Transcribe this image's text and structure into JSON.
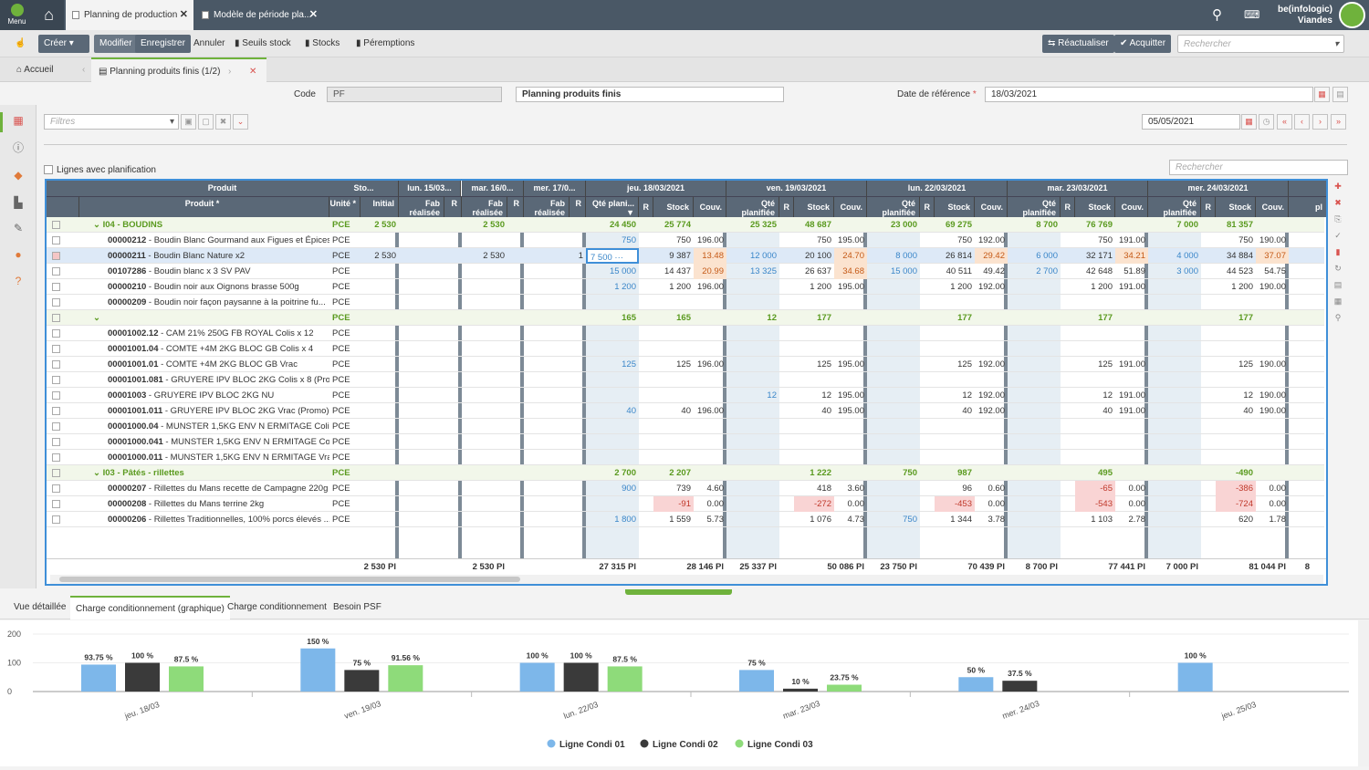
{
  "header": {
    "menu": "Menu",
    "tabs": [
      {
        "label": "Planning de production"
      },
      {
        "label": "Modèle de période pla..."
      }
    ],
    "brand_line1": "be(infologic)",
    "brand_line2": "Viandes"
  },
  "toolbar": {
    "create": "Créer",
    "modify": "Modifier",
    "save": "Enregistrer",
    "cancel": "Annuler",
    "seuils": "Seuils stock",
    "stocks": "Stocks",
    "peremptions": "Péremptions",
    "reactualiser": "Réactualiser",
    "acquitter": "Acquitter",
    "search_placeholder": "Rechercher"
  },
  "breadcrumb": {
    "home": "Accueil",
    "current": "Planning produits finis  (1/2)"
  },
  "form": {
    "code_label": "Code",
    "code_value": "PF",
    "name_value": "Planning produits finis",
    "date_ref_label": "Date de référence",
    "date_ref_value": "18/03/2021",
    "filters_placeholder": "Filtres",
    "date_nav": "05/05/2021",
    "checkbox_label": "Lignes avec planification",
    "grid_search": "Rechercher"
  },
  "grid": {
    "day_headers": [
      "Produit",
      "Sto...",
      "lun. 15/03...",
      "mar. 16/0...",
      "mer. 17/0...",
      "jeu. 18/03/2021",
      "ven. 19/03/2021",
      "lun. 22/03/2021",
      "mar. 23/03/2021",
      "mer. 24/03/2021"
    ],
    "sub_headers": {
      "produit": "Produit",
      "unite": "Unité",
      "initial": "Initial",
      "fab": "Fab réalisée",
      "r": "R",
      "qte": "Qté planifiée",
      "qte_short": "Qté plani...",
      "stock": "Stock",
      "couv": "Couv.",
      "pl": "pl"
    },
    "rows": [
      {
        "type": "grp",
        "prod": "I04 - BOUDINS",
        "unit": "PCE",
        "init": "2 530",
        "m16": "2 530",
        "d1q": "24 450",
        "d1s": "25 774",
        "d2q": "25 325",
        "d2s": "48 687",
        "d3q": "23 000",
        "d3s": "69 275",
        "d4q": "8 700",
        "d4s": "76 769",
        "d5q": "7 000",
        "d5s": "81 357"
      },
      {
        "code": "00000212",
        "prod": " - Boudin Blanc Gourmand aux Figues et Épices",
        "unit": "PCE",
        "d1q": "750",
        "d1s": "750",
        "d1c": "196.00",
        "d2s": "750",
        "d2c": "195.00",
        "d3s": "750",
        "d3c": "192.00",
        "d4s": "750",
        "d4c": "191.00",
        "d5s": "750",
        "d5c": "190.00"
      },
      {
        "type": "sel",
        "code": "00000211",
        "prod": " - Boudin Blanc Nature x2",
        "unit": "PCE",
        "init": "2 530",
        "m16": "2 530",
        "m17r": "1",
        "d1q": "7 500",
        "d1s": "9 387",
        "d1c": "13.48",
        "d1co": true,
        "d2q": "12 000",
        "d2s": "20 100",
        "d2c": "24.70",
        "d2co": true,
        "d3q": "8 000",
        "d3s": "26 814",
        "d3c": "29.42",
        "d3co": true,
        "d4q": "6 000",
        "d4s": "32 171",
        "d4c": "34.21",
        "d4co": true,
        "d5q": "4 000",
        "d5s": "34 884",
        "d5c": "37.07",
        "d5co": true
      },
      {
        "code": "00107286",
        "prod": " - Boudin blanc x 3 SV PAV",
        "unit": "PCE",
        "d1q": "15 000",
        "d1s": "14 437",
        "d1c": "20.99",
        "d1co": true,
        "d2q": "13 325",
        "d2s": "26 637",
        "d2c": "34.68",
        "d2co": true,
        "d3q": "15 000",
        "d3s": "40 511",
        "d3c": "49.42",
        "d4q": "2 700",
        "d4s": "42 648",
        "d4c": "51.89",
        "d5q": "3 000",
        "d5s": "44 523",
        "d5c": "54.75"
      },
      {
        "code": "00000210",
        "prod": " - Boudin noir aux Oignons brasse 500g",
        "unit": "PCE",
        "d1q": "1 200",
        "d1s": "1 200",
        "d1c": "196.00",
        "d2s": "1 200",
        "d2c": "195.00",
        "d3s": "1 200",
        "d3c": "192.00",
        "d4s": "1 200",
        "d4c": "191.00",
        "d5s": "1 200",
        "d5c": "190.00"
      },
      {
        "code": "00000209",
        "prod": " - Boudin noir façon paysanne à la poitrine fu...",
        "unit": "PCE"
      },
      {
        "type": "grp",
        "prod": "",
        "unit": "PCE",
        "d1q": "165",
        "d1s": "165",
        "d2q": "12",
        "d2s": "177",
        "d3s": "177",
        "d4s": "177",
        "d5s": "177"
      },
      {
        "code": "00001002.12",
        "prod": " - CAM 21% 250G FB ROYAL Colis x 12",
        "unit": "PCE"
      },
      {
        "code": "00001001.04",
        "prod": " - COMTE +4M 2KG BLOC GB Colis x 4",
        "unit": "PCE"
      },
      {
        "code": "00001001.01",
        "prod": " - COMTE +4M 2KG BLOC GB Vrac",
        "unit": "PCE",
        "d1q": "125",
        "d1s": "125",
        "d1c": "196.00",
        "d2s": "125",
        "d2c": "195.00",
        "d3s": "125",
        "d3c": "192.00",
        "d4s": "125",
        "d4c": "191.00",
        "d5s": "125",
        "d5c": "190.00"
      },
      {
        "code": "00001001.081",
        "prod": " - GRUYERE IPV BLOC 2KG Colis x 8 (Pro...",
        "unit": "PCE"
      },
      {
        "code": "00001003",
        "prod": " - GRUYERE IPV BLOC 2KG NU",
        "unit": "PCE",
        "d2q": "12",
        "d2s": "12",
        "d2c": "195.00",
        "d3s": "12",
        "d3c": "192.00",
        "d4s": "12",
        "d4c": "191.00",
        "d5s": "12",
        "d5c": "190.00"
      },
      {
        "code": "00001001.011",
        "prod": " - GRUYERE IPV BLOC 2KG Vrac (Promo)",
        "unit": "PCE",
        "d1q": "40",
        "d1s": "40",
        "d1c": "196.00",
        "d2s": "40",
        "d2c": "195.00",
        "d3s": "40",
        "d3c": "192.00",
        "d4s": "40",
        "d4c": "191.00",
        "d5s": "40",
        "d5c": "190.00"
      },
      {
        "code": "00001000.04",
        "prod": " - MUNSTER 1,5KG ENV N ERMITAGE Coli...",
        "unit": "PCE"
      },
      {
        "code": "00001000.041",
        "prod": " - MUNSTER 1,5KG ENV N ERMITAGE Col...",
        "unit": "PCE"
      },
      {
        "code": "00001000.011",
        "prod": " - MUNSTER 1,5KG ENV N ERMITAGE Vra...",
        "unit": "PCE"
      },
      {
        "type": "grp",
        "prod": "I03 - Pâtés - rillettes",
        "unit": "PCE",
        "d1q": "2 700",
        "d1s": "2 207",
        "d2s": "1 222",
        "d3q": "750",
        "d3s": "987",
        "d4s": "495",
        "d5s": "-490"
      },
      {
        "code": "00000207",
        "prod": " - Rillettes du Mans recette de Campagne 220g",
        "unit": "PCE",
        "d1q": "900",
        "d1s": "739",
        "d1c": "4.60",
        "d2s": "418",
        "d2c": "3.60",
        "d3s": "96",
        "d3c": "0.60",
        "d4s": "-65",
        "d4c": "0.00",
        "d4sr": true,
        "d5s": "-386",
        "d5c": "0.00",
        "d5sr": true
      },
      {
        "code": "00000208",
        "prod": " - Rillettes du Mans terrine 2kg",
        "unit": "PCE",
        "d1s": "-91",
        "d1c": "0.00",
        "d1sr": true,
        "d2s": "-272",
        "d2c": "0.00",
        "d2sr": true,
        "d3s": "-453",
        "d3c": "0.00",
        "d3sr": true,
        "d4s": "-543",
        "d4c": "0.00",
        "d4sr": true,
        "d5s": "-724",
        "d5c": "0.00",
        "d5sr": true
      },
      {
        "code": "00000206",
        "prod": " - Rillettes Traditionnelles, 100% porcs élevés ...",
        "unit": "PCE",
        "d1q": "1 800",
        "d1s": "1 559",
        "d1c": "5.73",
        "d2s": "1 076",
        "d2c": "4.73",
        "d3q": "750",
        "d3s": "1 344",
        "d3c": "3.78",
        "d4s": "1 103",
        "d4c": "2.78",
        "d5s": "620",
        "d5c": "1.78"
      }
    ],
    "totals": {
      "init": "2 530 Pl",
      "m16": "2 530 Pl",
      "d1q": "27 315 Pl",
      "d1s": "28 146 Pl",
      "d2q": "25 337 Pl",
      "d2s": "50 086 Pl",
      "d3q": "23 750 Pl",
      "d3s": "70 439 Pl",
      "d4q": "8 700 Pl",
      "d4s": "77 441 Pl",
      "d5q": "7 000 Pl",
      "d5s": "81 044 Pl",
      "pl": "8"
    }
  },
  "bottom_tabs": [
    "Vue détaillée",
    "Charge conditionnement (graphique)",
    "Charge conditionnement",
    "Besoin PSF"
  ],
  "colors": {
    "accent": "#6fb23c",
    "header_bg": "#4a5866",
    "series1": "#7db7ea",
    "series2": "#3a3a3a",
    "series3": "#8edb7a"
  },
  "chart_data": {
    "type": "bar",
    "categories": [
      "jeu. 18/03",
      "ven. 19/03",
      "lun. 22/03",
      "mar. 23/03",
      "mer. 24/03",
      "jeu. 25/03"
    ],
    "series": [
      {
        "name": "Ligne Condi 01",
        "values": [
          93.75,
          150,
          100,
          75,
          50,
          100
        ],
        "labels": [
          "93.75 %",
          "150 %",
          "100 %",
          "75 %",
          "50 %",
          "100 %"
        ]
      },
      {
        "name": "Ligne Condi 02",
        "values": [
          100,
          75,
          100,
          10,
          37.5,
          null
        ],
        "labels": [
          "100 %",
          "75 %",
          "100 %",
          "10 %",
          "37.5 %",
          ""
        ]
      },
      {
        "name": "Ligne Condi 03",
        "values": [
          87.5,
          91.56,
          87.5,
          23.75,
          null,
          null
        ],
        "labels": [
          "87.5 %",
          "91.56 %",
          "87.5 %",
          "23.75 %",
          "",
          ""
        ]
      }
    ],
    "yticks": [
      "200",
      "100",
      "0"
    ],
    "ylim": [
      0,
      200
    ],
    "legend": "bottom-center"
  }
}
